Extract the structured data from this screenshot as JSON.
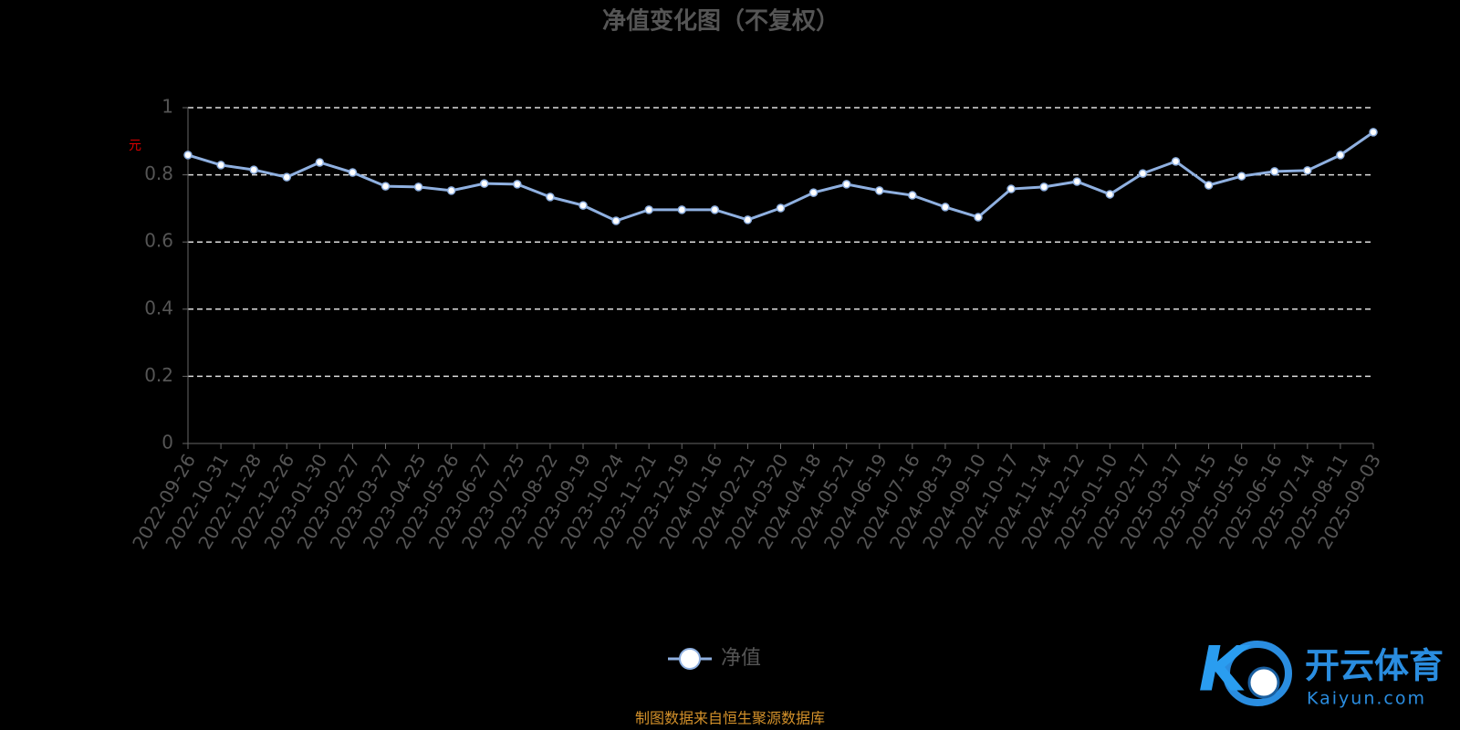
{
  "chart_data": {
    "type": "line",
    "title": "净值变化图（不复权）",
    "y_label": "元",
    "categories": [
      "2022-09-26",
      "2022-10-31",
      "2022-11-28",
      "2022-12-26",
      "2023-01-30",
      "2023-02-27",
      "2023-03-27",
      "2023-04-25",
      "2023-05-26",
      "2023-06-27",
      "2023-07-25",
      "2023-08-22",
      "2023-09-19",
      "2023-10-24",
      "2023-11-21",
      "2023-12-19",
      "2024-01-16",
      "2024-02-21",
      "2024-03-20",
      "2024-04-18",
      "2024-05-21",
      "2024-06-19",
      "2024-07-16",
      "2024-08-13",
      "2024-09-10",
      "2024-10-17",
      "2024-11-14",
      "2024-12-12",
      "2025-01-10",
      "2025-02-17",
      "2025-03-17",
      "2025-04-15",
      "2025-05-16",
      "2025-06-16",
      "2025-07-14",
      "2025-08-11",
      "2025-09-03"
    ],
    "series": [
      {
        "name": "净值",
        "color": "#8fb0e0",
        "values": [
          0.859,
          0.829,
          0.815,
          0.793,
          0.837,
          0.807,
          0.766,
          0.764,
          0.753,
          0.774,
          0.772,
          0.734,
          0.709,
          0.663,
          0.696,
          0.696,
          0.696,
          0.666,
          0.701,
          0.747,
          0.772,
          0.753,
          0.739,
          0.704,
          0.674,
          0.758,
          0.764,
          0.78,
          0.742,
          0.804,
          0.84,
          0.769,
          0.796,
          0.81,
          0.813,
          0.859,
          0.927
        ]
      }
    ],
    "ylim": [
      0,
      1
    ],
    "yticks": [
      0,
      0.2,
      0.4,
      0.6,
      0.8,
      1
    ],
    "grid": true,
    "legend": "bottom",
    "source": "制图数据来自恒生聚源数据库"
  },
  "watermark": {
    "name": "开云体育",
    "url": "Kaiyun.com"
  }
}
